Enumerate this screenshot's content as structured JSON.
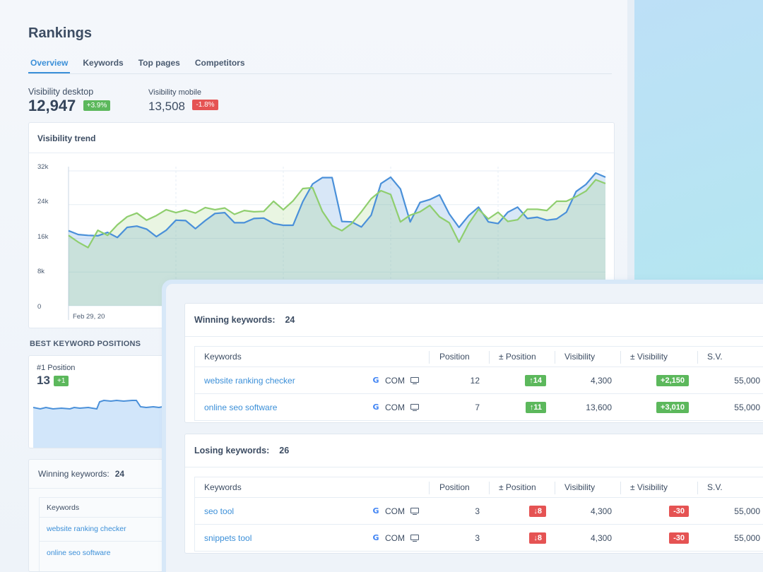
{
  "page": {
    "title": "Rankings"
  },
  "tabs": [
    {
      "label": "Overview",
      "active": true
    },
    {
      "label": "Keywords"
    },
    {
      "label": "Top pages"
    },
    {
      "label": "Competitors"
    }
  ],
  "kpis": {
    "desktop": {
      "label": "Visibility desktop",
      "value": "12,947",
      "change": "+3.9%"
    },
    "mobile": {
      "label": "Visibility mobile",
      "value": "13,508",
      "change": "-1.8%"
    }
  },
  "trend": {
    "title": "Visibility trend",
    "y_ticks": [
      "32k",
      "24k",
      "16k",
      "8k",
      "0"
    ],
    "x_tick": "Feb 29, 20"
  },
  "chart_data": {
    "type": "area",
    "title": "Visibility trend",
    "ylim": [
      0,
      33000
    ],
    "y_ticks": [
      0,
      8000,
      16000,
      24000,
      32000
    ],
    "x_start_label": "Feb 29, 20",
    "grid": true,
    "series": [
      {
        "color": "#4a90d9",
        "values": [
          17800,
          16900,
          16700,
          16600,
          17400,
          16200,
          18600,
          18900,
          18200,
          16400,
          17900,
          20300,
          20200,
          18300,
          20200,
          21900,
          22100,
          19700,
          19700,
          20700,
          20800,
          19500,
          19100,
          19100,
          24700,
          28900,
          30400,
          30400,
          20000,
          19900,
          18700,
          21500,
          29000,
          30500,
          27700,
          19900,
          24500,
          25200,
          26300,
          21800,
          18600,
          21400,
          23400,
          19900,
          19500,
          22200,
          23400,
          20700,
          21000,
          20300,
          20600,
          22200,
          27100,
          28800,
          31500,
          30500
        ]
      },
      {
        "color": "#8fce6e",
        "values": [
          16700,
          15100,
          13800,
          17900,
          16700,
          19200,
          21100,
          22000,
          20300,
          21400,
          22800,
          22100,
          22700,
          22000,
          23300,
          22800,
          23200,
          21700,
          22600,
          22300,
          22400,
          24800,
          22800,
          24900,
          27800,
          28000,
          22400,
          19000,
          17800,
          19500,
          22300,
          25400,
          27300,
          26400,
          19900,
          21500,
          22300,
          23800,
          21100,
          19700,
          15100,
          19500,
          22900,
          20600,
          22200,
          20000,
          20400,
          22900,
          22900,
          22600,
          24800,
          24800,
          25900,
          27200,
          29900,
          29000
        ]
      }
    ]
  },
  "best_positions": {
    "section_label": "BEST KEYWORD POSITIONS",
    "card_label": "#1 Position",
    "value": "13",
    "change": "+1"
  },
  "bg_winning": {
    "title": "Winning keywords:",
    "count": "24",
    "header": "Keywords",
    "rows": [
      "website ranking checker",
      "online seo software"
    ]
  },
  "columns": [
    "Keywords",
    "Position",
    "± Position",
    "Visibility",
    "± Visibility",
    "S.V."
  ],
  "winning": {
    "title": "Winning keywords:",
    "count": "24",
    "rows": [
      {
        "keyword": "website ranking checker",
        "engine": "COM",
        "position": "12",
        "pos_change": "↑14",
        "visibility": "4,300",
        "vis_change": "+2,150",
        "sv": "55,000"
      },
      {
        "keyword": "online seo software",
        "engine": "COM",
        "position": "7",
        "pos_change": "↑11",
        "visibility": "13,600",
        "vis_change": "+3,010",
        "sv": "55,000"
      }
    ]
  },
  "losing": {
    "title": "Losing keywords:",
    "count": "26",
    "rows": [
      {
        "keyword": "seo tool",
        "engine": "COM",
        "position": "3",
        "pos_change": "↓8",
        "visibility": "4,300",
        "vis_change": "-30",
        "sv": "55,000"
      },
      {
        "keyword": "snippets tool",
        "engine": "COM",
        "position": "3",
        "pos_change": "↓8",
        "visibility": "4,300",
        "vis_change": "-30",
        "sv": "55,000"
      }
    ]
  }
}
